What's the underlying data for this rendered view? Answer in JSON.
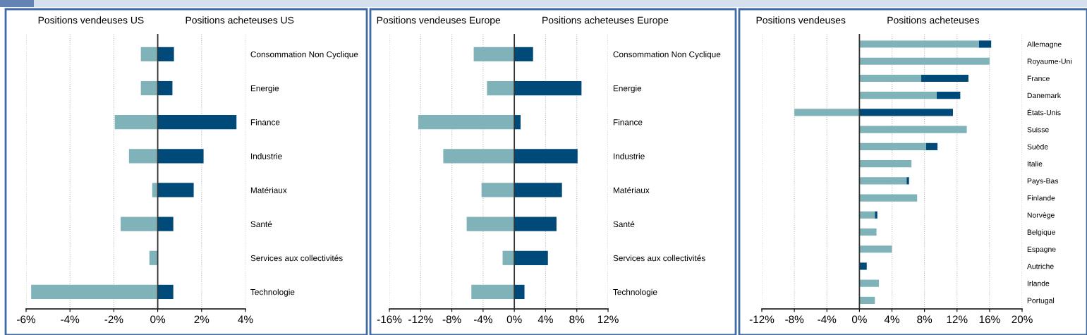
{
  "chart_data": [
    {
      "type": "bar",
      "orientation": "horizontal",
      "stacked": true,
      "annotations": [
        "Positions vendeuses US",
        "Positions acheteuses US"
      ],
      "categories": [
        "Consommation Non Cyclique",
        "Energie",
        "Finance",
        "Industrie",
        "Matériaux",
        "Santé",
        "Services aux collectivités",
        "Technologie"
      ],
      "series": [
        {
          "color": "#80b3b9",
          "values": [
            -0.77,
            -0.77,
            -1.96,
            -1.31,
            -0.25,
            -1.69,
            -0.38,
            -5.77
          ]
        },
        {
          "color": "#004a7a",
          "values": [
            0.74,
            0.67,
            3.59,
            2.09,
            1.64,
            0.71,
            null,
            0.71
          ]
        }
      ],
      "xlim": [
        -6,
        4
      ],
      "xticks": [
        {
          "value": -6,
          "label": "-6%"
        },
        {
          "value": -4,
          "label": "-4%"
        },
        {
          "value": -2,
          "label": "-2%"
        },
        {
          "value": 0,
          "label": "0%"
        },
        {
          "value": 2,
          "label": "2%"
        },
        {
          "value": 4,
          "label": "4%"
        }
      ],
      "grid": "x",
      "ref_lines": [
        {
          "axis": "x",
          "value": 0,
          "color": "#333333"
        }
      ]
    },
    {
      "type": "bar",
      "orientation": "horizontal",
      "stacked": true,
      "annotations": [
        "Positions vendeuses Europe",
        "Positions acheteuses Europe"
      ],
      "categories": [
        "Consommation Non Cyclique",
        "Energie",
        "Finance",
        "Industrie",
        "Matériaux",
        "Santé",
        "Services aux collectivités",
        "Technologie"
      ],
      "series": [
        {
          "color": "#80b3b9",
          "values": [
            -5.2,
            -3.5,
            -12.3,
            -9.1,
            -4.2,
            -6.1,
            -1.5,
            -5.5
          ]
        },
        {
          "color": "#004a7a",
          "values": [
            2.4,
            8.6,
            0.8,
            8.1,
            6.1,
            5.4,
            4.3,
            1.3
          ]
        }
      ],
      "xlim": [
        -16,
        12
      ],
      "xticks": [
        {
          "value": -16,
          "label": "-16%"
        },
        {
          "value": -12,
          "label": "-12%"
        },
        {
          "value": -8,
          "label": "-8%"
        },
        {
          "value": -4,
          "label": "-4%"
        },
        {
          "value": 0,
          "label": "0%"
        },
        {
          "value": 4,
          "label": "4%"
        },
        {
          "value": 8,
          "label": "8%"
        },
        {
          "value": 12,
          "label": "12%"
        }
      ],
      "grid": "x",
      "ref_lines": [
        {
          "axis": "x",
          "value": 0,
          "color": "#333333"
        }
      ]
    },
    {
      "type": "bar",
      "orientation": "horizontal",
      "stacked": true,
      "annotations": [
        "Positions vendeuses",
        "Positions acheteuses"
      ],
      "categories": [
        "Allemagne",
        "Royaume-Uni",
        "France",
        "Danemark",
        "États-Unis",
        "Suisse",
        "Suède",
        "Italie",
        "Pays-Bas",
        "Finlande",
        "Norvège",
        "Belgique",
        "Espagne",
        "Autriche",
        "Irlande",
        "Portugal"
      ],
      "series": [
        {
          "color": "#80b3b9",
          "values": [
            14.7,
            16.0,
            7.6,
            9.5,
            -8.0,
            13.2,
            8.2,
            6.4,
            5.8,
            7.1,
            1.9,
            2.1,
            4.0,
            0,
            2.4,
            1.9
          ]
        },
        {
          "color": "#004a7a",
          "values": [
            1.5,
            0,
            5.8,
            2.9,
            11.5,
            0,
            1.4,
            0,
            0.3,
            0,
            0.3,
            0,
            0,
            0.9,
            0,
            0
          ]
        }
      ],
      "xlim": [
        -12,
        20
      ],
      "xticks": [
        {
          "value": -12,
          "label": "-12%"
        },
        {
          "value": -8,
          "label": "-8%"
        },
        {
          "value": -4,
          "label": "-4%"
        },
        {
          "value": 0,
          "label": "0%"
        },
        {
          "value": 4,
          "label": "4%"
        },
        {
          "value": 8,
          "label": "8%"
        },
        {
          "value": 12,
          "label": "12%"
        },
        {
          "value": 16,
          "label": "16%"
        },
        {
          "value": 20,
          "label": "20%"
        }
      ],
      "grid": "x",
      "ref_lines": [
        {
          "axis": "x",
          "value": 0,
          "color": "#333333"
        }
      ]
    }
  ]
}
